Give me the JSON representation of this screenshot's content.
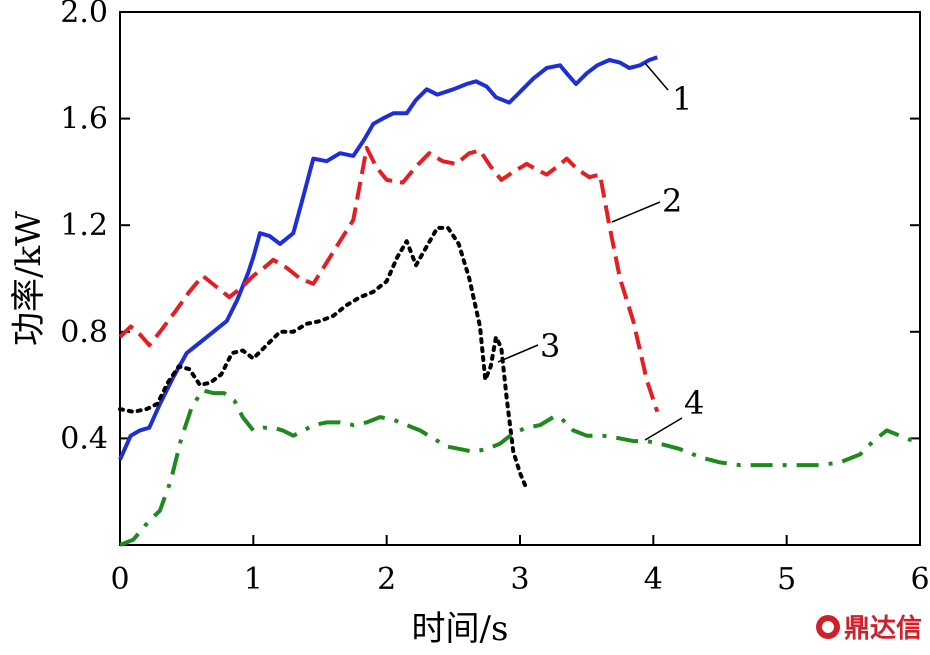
{
  "chart_data": {
    "type": "line",
    "title": "",
    "xlabel": "时间/s",
    "ylabel": "功率/kW",
    "xlim": [
      0,
      6
    ],
    "ylim": [
      0,
      2.0
    ],
    "x_ticks": [
      "0",
      "1",
      "2",
      "3",
      "4",
      "5",
      "6"
    ],
    "y_ticks": [
      "0.4",
      "0.8",
      "1.2",
      "1.6",
      "2.0"
    ],
    "y_tick_values": [
      0.4,
      0.8,
      1.2,
      1.6,
      2.0
    ],
    "grid": false,
    "series": [
      {
        "label": "1",
        "color": "#1f2fd6",
        "style": "solid",
        "points": [
          [
            0,
            0.32
          ],
          [
            0.08,
            0.41
          ],
          [
            0.15,
            0.43
          ],
          [
            0.22,
            0.44
          ],
          [
            0.3,
            0.53
          ],
          [
            0.4,
            0.63
          ],
          [
            0.5,
            0.72
          ],
          [
            0.6,
            0.76
          ],
          [
            0.7,
            0.8
          ],
          [
            0.8,
            0.84
          ],
          [
            0.88,
            0.92
          ],
          [
            0.96,
            1.02
          ],
          [
            1.0,
            1.08
          ],
          [
            1.05,
            1.17
          ],
          [
            1.12,
            1.16
          ],
          [
            1.2,
            1.13
          ],
          [
            1.3,
            1.17
          ],
          [
            1.37,
            1.3
          ],
          [
            1.45,
            1.45
          ],
          [
            1.55,
            1.44
          ],
          [
            1.65,
            1.47
          ],
          [
            1.75,
            1.46
          ],
          [
            1.83,
            1.52
          ],
          [
            1.9,
            1.58
          ],
          [
            1.97,
            1.6
          ],
          [
            2.05,
            1.62
          ],
          [
            2.15,
            1.62
          ],
          [
            2.22,
            1.67
          ],
          [
            2.3,
            1.71
          ],
          [
            2.38,
            1.69
          ],
          [
            2.5,
            1.71
          ],
          [
            2.6,
            1.73
          ],
          [
            2.67,
            1.74
          ],
          [
            2.75,
            1.72
          ],
          [
            2.82,
            1.68
          ],
          [
            2.92,
            1.66
          ],
          [
            3.0,
            1.7
          ],
          [
            3.1,
            1.75
          ],
          [
            3.2,
            1.79
          ],
          [
            3.3,
            1.8
          ],
          [
            3.35,
            1.77
          ],
          [
            3.42,
            1.73
          ],
          [
            3.5,
            1.77
          ],
          [
            3.58,
            1.8
          ],
          [
            3.67,
            1.82
          ],
          [
            3.75,
            1.81
          ],
          [
            3.82,
            1.79
          ],
          [
            3.9,
            1.8
          ],
          [
            3.97,
            1.82
          ],
          [
            4.03,
            1.83
          ]
        ]
      },
      {
        "label": "2",
        "color": "#e41f24",
        "style": "dashed",
        "points": [
          [
            0,
            0.78
          ],
          [
            0.08,
            0.82
          ],
          [
            0.15,
            0.79
          ],
          [
            0.22,
            0.75
          ],
          [
            0.3,
            0.8
          ],
          [
            0.42,
            0.88
          ],
          [
            0.52,
            0.95
          ],
          [
            0.62,
            1.01
          ],
          [
            0.72,
            0.97
          ],
          [
            0.82,
            0.93
          ],
          [
            0.92,
            0.97
          ],
          [
            1.0,
            1.01
          ],
          [
            1.08,
            1.04
          ],
          [
            1.15,
            1.07
          ],
          [
            1.25,
            1.04
          ],
          [
            1.35,
            1.0
          ],
          [
            1.45,
            0.98
          ],
          [
            1.55,
            1.06
          ],
          [
            1.65,
            1.14
          ],
          [
            1.75,
            1.22
          ],
          [
            1.85,
            1.49
          ],
          [
            1.92,
            1.42
          ],
          [
            2.0,
            1.37
          ],
          [
            2.12,
            1.36
          ],
          [
            2.22,
            1.42
          ],
          [
            2.32,
            1.47
          ],
          [
            2.42,
            1.44
          ],
          [
            2.52,
            1.43
          ],
          [
            2.62,
            1.47
          ],
          [
            2.7,
            1.48
          ],
          [
            2.78,
            1.42
          ],
          [
            2.86,
            1.37
          ],
          [
            2.95,
            1.4
          ],
          [
            3.05,
            1.43
          ],
          [
            3.12,
            1.41
          ],
          [
            3.2,
            1.39
          ],
          [
            3.28,
            1.42
          ],
          [
            3.35,
            1.45
          ],
          [
            3.43,
            1.41
          ],
          [
            3.52,
            1.38
          ],
          [
            3.6,
            1.39
          ],
          [
            3.67,
            1.2
          ],
          [
            3.75,
            1.0
          ],
          [
            3.85,
            0.84
          ],
          [
            3.95,
            0.62
          ],
          [
            4.03,
            0.5
          ]
        ]
      },
      {
        "label": "3",
        "color": "#000000",
        "style": "dotted",
        "points": [
          [
            0,
            0.51
          ],
          [
            0.1,
            0.5
          ],
          [
            0.2,
            0.51
          ],
          [
            0.28,
            0.53
          ],
          [
            0.36,
            0.61
          ],
          [
            0.44,
            0.67
          ],
          [
            0.52,
            0.66
          ],
          [
            0.6,
            0.6
          ],
          [
            0.68,
            0.61
          ],
          [
            0.76,
            0.64
          ],
          [
            0.84,
            0.72
          ],
          [
            0.92,
            0.73
          ],
          [
            1.0,
            0.7
          ],
          [
            1.1,
            0.75
          ],
          [
            1.2,
            0.8
          ],
          [
            1.3,
            0.8
          ],
          [
            1.4,
            0.83
          ],
          [
            1.5,
            0.84
          ],
          [
            1.6,
            0.86
          ],
          [
            1.7,
            0.9
          ],
          [
            1.8,
            0.93
          ],
          [
            1.9,
            0.95
          ],
          [
            2.0,
            0.99
          ],
          [
            2.08,
            1.08
          ],
          [
            2.15,
            1.14
          ],
          [
            2.22,
            1.05
          ],
          [
            2.3,
            1.12
          ],
          [
            2.38,
            1.19
          ],
          [
            2.46,
            1.19
          ],
          [
            2.54,
            1.13
          ],
          [
            2.62,
            1.0
          ],
          [
            2.7,
            0.82
          ],
          [
            2.74,
            0.62
          ],
          [
            2.78,
            0.67
          ],
          [
            2.82,
            0.78
          ],
          [
            2.86,
            0.74
          ],
          [
            2.9,
            0.55
          ],
          [
            2.95,
            0.35
          ],
          [
            3.0,
            0.27
          ],
          [
            3.05,
            0.21
          ]
        ]
      },
      {
        "label": "4",
        "color": "#1e8a1e",
        "style": "dashdot",
        "points": [
          [
            0,
            0
          ],
          [
            0.1,
            0.02
          ],
          [
            0.2,
            0.08
          ],
          [
            0.3,
            0.13
          ],
          [
            0.38,
            0.24
          ],
          [
            0.46,
            0.4
          ],
          [
            0.54,
            0.52
          ],
          [
            0.62,
            0.58
          ],
          [
            0.7,
            0.57
          ],
          [
            0.78,
            0.57
          ],
          [
            0.86,
            0.54
          ],
          [
            0.92,
            0.48
          ],
          [
            1.0,
            0.43
          ],
          [
            1.08,
            0.44
          ],
          [
            1.15,
            0.44
          ],
          [
            1.22,
            0.43
          ],
          [
            1.3,
            0.41
          ],
          [
            1.38,
            0.43
          ],
          [
            1.45,
            0.45
          ],
          [
            1.55,
            0.46
          ],
          [
            1.65,
            0.46
          ],
          [
            1.75,
            0.45
          ],
          [
            1.85,
            0.46
          ],
          [
            1.95,
            0.48
          ],
          [
            2.05,
            0.47
          ],
          [
            2.15,
            0.45
          ],
          [
            2.25,
            0.43
          ],
          [
            2.35,
            0.4
          ],
          [
            2.45,
            0.37
          ],
          [
            2.55,
            0.36
          ],
          [
            2.65,
            0.35
          ],
          [
            2.75,
            0.36
          ],
          [
            2.85,
            0.38
          ],
          [
            2.95,
            0.42
          ],
          [
            3.05,
            0.44
          ],
          [
            3.15,
            0.45
          ],
          [
            3.25,
            0.48
          ],
          [
            3.3,
            0.48
          ],
          [
            3.4,
            0.43
          ],
          [
            3.5,
            0.41
          ],
          [
            3.62,
            0.41
          ],
          [
            3.75,
            0.4
          ],
          [
            3.85,
            0.39
          ],
          [
            3.95,
            0.39
          ],
          [
            4.05,
            0.38
          ],
          [
            4.2,
            0.36
          ],
          [
            4.35,
            0.33
          ],
          [
            4.5,
            0.31
          ],
          [
            4.65,
            0.3
          ],
          [
            4.8,
            0.3
          ],
          [
            4.95,
            0.3
          ],
          [
            5.1,
            0.3
          ],
          [
            5.25,
            0.3
          ],
          [
            5.4,
            0.31
          ],
          [
            5.55,
            0.34
          ],
          [
            5.65,
            0.39
          ],
          [
            5.75,
            0.43
          ],
          [
            5.85,
            0.41
          ],
          [
            5.95,
            0.39
          ],
          [
            6.0,
            0.38
          ]
        ]
      }
    ]
  },
  "watermark": {
    "text": "鼎达信"
  }
}
